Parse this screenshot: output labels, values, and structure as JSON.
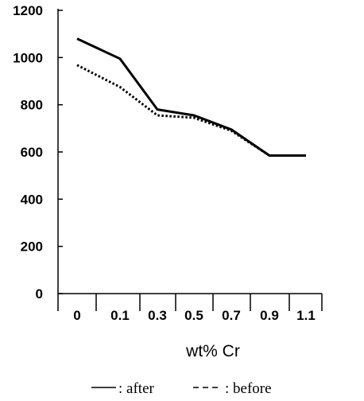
{
  "chart_data": {
    "type": "line",
    "categories": [
      "0",
      "0.1",
      "0.3",
      "0.5",
      "0.7",
      "0.9",
      "1.1"
    ],
    "series": [
      {
        "name": "after",
        "values": [
          1080,
          995,
          780,
          755,
          695,
          585,
          585
        ]
      },
      {
        "name": "before",
        "values": [
          968,
          875,
          755,
          745,
          690,
          585,
          585
        ]
      }
    ],
    "title": "",
    "xlabel": "wt% Cr",
    "ylabel": "",
    "ylim": [
      0,
      1200
    ],
    "yticks": [
      0,
      200,
      400,
      600,
      800,
      1000,
      1200
    ],
    "grid": false,
    "legend": {
      "placement": "bottom",
      "entries": [
        {
          "label": ": after",
          "style": "solid"
        },
        {
          "label": ": before",
          "style": "dashed"
        }
      ]
    }
  }
}
